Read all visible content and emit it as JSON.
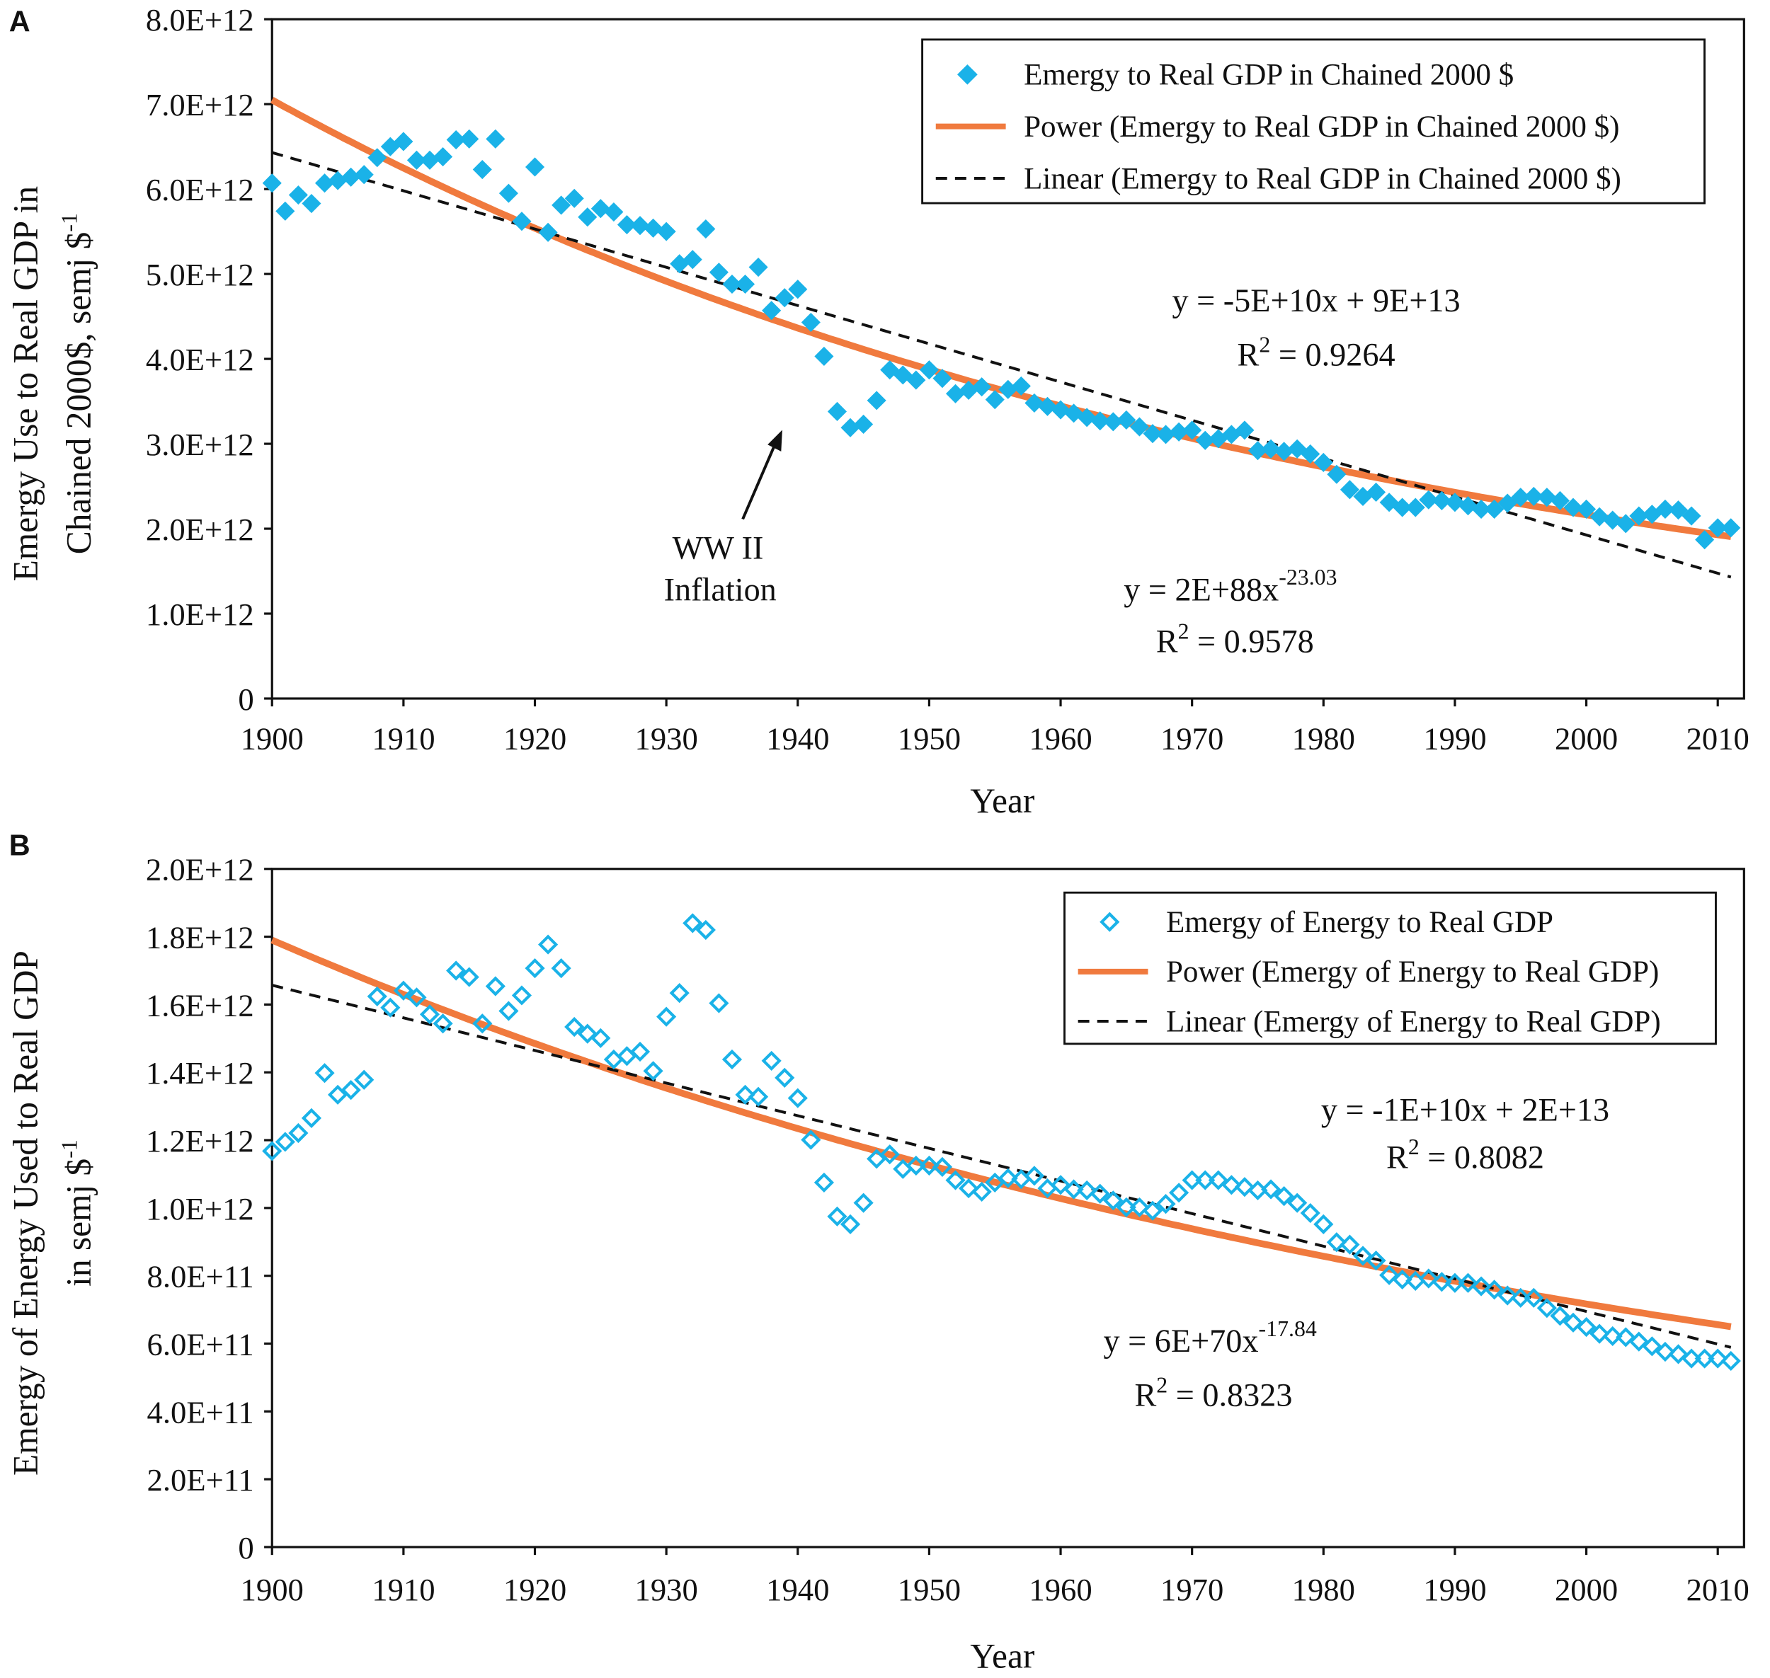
{
  "chart_data": [
    {
      "panel": "A",
      "type": "scatter",
      "xlabel": "Year",
      "ylabel": [
        "Emergy Use to Real GDP in",
        "Chained 2000$, semj $",
        "-1"
      ],
      "xlim": [
        1900,
        2012
      ],
      "ylim": [
        0,
        8000000000000.0
      ],
      "x_ticks": [
        1900,
        1910,
        1920,
        1930,
        1940,
        1950,
        1960,
        1970,
        1980,
        1990,
        2000,
        2010
      ],
      "y_ticks": [
        0,
        1000000000000.0,
        2000000000000.0,
        3000000000000.0,
        4000000000000.0,
        5000000000000.0,
        6000000000000.0,
        7000000000000.0,
        8000000000000.0
      ],
      "y_tick_labels": [
        "0",
        "1.0E+12",
        "2.0E+12",
        "3.0E+12",
        "4.0E+12",
        "5.0E+12",
        "6.0E+12",
        "7.0E+12",
        "8.0E+12"
      ],
      "legend_position": "top-right",
      "series": [
        {
          "name": "Emergy to Real GDP in Chained 2000 $",
          "marker": "filled-diamond",
          "color": "#1ab2e8",
          "x_start": 1900,
          "values": [
            6.07,
            5.74,
            5.93,
            5.83,
            6.07,
            6.1,
            6.14,
            6.17,
            6.37,
            6.5,
            6.56,
            6.34,
            6.34,
            6.38,
            6.58,
            6.59,
            6.23,
            6.59,
            5.95,
            5.62,
            6.26,
            5.49,
            5.81,
            5.89,
            5.67,
            5.77,
            5.73,
            5.58,
            5.57,
            5.54,
            5.5,
            5.12,
            5.17,
            5.53,
            5.02,
            4.88,
            4.88,
            5.08,
            4.57,
            4.72,
            4.82,
            4.43,
            4.03,
            3.38,
            3.19,
            3.23,
            3.51,
            3.87,
            3.81,
            3.75,
            3.87,
            3.77,
            3.59,
            3.63,
            3.67,
            3.52,
            3.64,
            3.68,
            3.48,
            3.44,
            3.4,
            3.36,
            3.31,
            3.27,
            3.26,
            3.28,
            3.2,
            3.12,
            3.11,
            3.14,
            3.16,
            3.04,
            3.06,
            3.11,
            3.16,
            2.92,
            2.94,
            2.91,
            2.94,
            2.88,
            2.78,
            2.64,
            2.46,
            2.38,
            2.43,
            2.31,
            2.25,
            2.25,
            2.34,
            2.33,
            2.31,
            2.27,
            2.23,
            2.23,
            2.3,
            2.37,
            2.38,
            2.37,
            2.33,
            2.25,
            2.23,
            2.14,
            2.1,
            2.06,
            2.15,
            2.17,
            2.23,
            2.22,
            2.15,
            1.87,
            2.01,
            2.01
          ],
          "value_scale": 1000000000000.0
        },
        {
          "name": "Power (Emergy to Real GDP in Chained 2000 $)",
          "type": "power-trend",
          "color": "#f07a3e",
          "exponent": -23.03,
          "y_at_1900": 7050000000000.0,
          "x_range": [
            1900,
            2011
          ]
        },
        {
          "name": "Linear (Emergy to Real GDP in Chained 2000 $)",
          "type": "linear-trend",
          "color": "#111111",
          "y_at_1900": 6430000000000.0,
          "y_at_2011": 1430000000000.0
        }
      ],
      "annotations": {
        "linear_eq": "y = -5E+10x + 9E+13",
        "linear_r2_prefix": "R",
        "linear_r2_sup": "2",
        "linear_r2_value": " = 0.9264",
        "power_eq": "y = 2E+88x",
        "power_eq_sup": "-23.03",
        "power_r2_prefix": "R",
        "power_r2_sup": "2",
        "power_r2_value": " = 0.9578",
        "callout_line1": "WW II",
        "callout_line2": "Inflation"
      }
    },
    {
      "panel": "B",
      "type": "scatter",
      "xlabel": "Year",
      "ylabel": [
        "Emergy of Energy Used to Real GDP",
        "in semj $",
        "-1"
      ],
      "xlim": [
        1900,
        2012
      ],
      "ylim": [
        0,
        2000000000000.0
      ],
      "x_ticks": [
        1900,
        1910,
        1920,
        1930,
        1940,
        1950,
        1960,
        1970,
        1980,
        1990,
        2000,
        2010
      ],
      "y_ticks": [
        0,
        200000000000.0,
        400000000000.0,
        600000000000.0,
        800000000000.0,
        1000000000000.0,
        1200000000000.0,
        1400000000000.0,
        1600000000000.0,
        1800000000000.0,
        2000000000000.0
      ],
      "y_tick_labels": [
        "0",
        "2.0E+11",
        "4.0E+11",
        "6.0E+11",
        "8.0E+11",
        "1.0E+12",
        "1.2E+12",
        "1.4E+12",
        "1.6E+12",
        "1.8E+12",
        "2.0E+12"
      ],
      "legend_position": "top-right",
      "series": [
        {
          "name": "Emergy of Energy to Real GDP",
          "marker": "hollow-diamond",
          "color": "#1ab2e8",
          "x_start": 1900,
          "values": [
            1.168,
            1.195,
            1.221,
            1.265,
            1.398,
            1.334,
            1.348,
            1.378,
            1.624,
            1.591,
            1.641,
            1.621,
            1.571,
            1.544,
            1.7,
            1.681,
            1.544,
            1.654,
            1.581,
            1.627,
            1.707,
            1.777,
            1.707,
            1.534,
            1.514,
            1.501,
            1.438,
            1.448,
            1.461,
            1.404,
            1.564,
            1.634,
            1.84,
            1.82,
            1.604,
            1.438,
            1.334,
            1.328,
            1.434,
            1.384,
            1.324,
            1.201,
            1.075,
            0.975,
            0.952,
            1.015,
            1.145,
            1.158,
            1.115,
            1.125,
            1.125,
            1.121,
            1.082,
            1.058,
            1.048,
            1.075,
            1.088,
            1.085,
            1.095,
            1.058,
            1.068,
            1.055,
            1.052,
            1.042,
            1.022,
            1.002,
            1.002,
            0.992,
            1.012,
            1.045,
            1.082,
            1.082,
            1.082,
            1.068,
            1.062,
            1.052,
            1.055,
            1.035,
            1.015,
            0.985,
            0.952,
            0.899,
            0.892,
            0.859,
            0.845,
            0.802,
            0.789,
            0.785,
            0.792,
            0.782,
            0.779,
            0.779,
            0.769,
            0.759,
            0.742,
            0.735,
            0.735,
            0.705,
            0.682,
            0.662,
            0.649,
            0.629,
            0.622,
            0.619,
            0.606,
            0.592,
            0.576,
            0.569,
            0.556,
            0.556,
            0.556,
            0.549
          ],
          "value_scale": 1000000000000.0
        },
        {
          "name": "Power (Emergy of Energy to Real GDP)",
          "type": "power-trend",
          "color": "#f07a3e",
          "exponent": -17.84,
          "y_at_1900": 1790000000000.0,
          "x_range": [
            1900,
            2011
          ]
        },
        {
          "name": "Linear (Emergy of Energy to Real GDP)",
          "type": "linear-trend",
          "color": "#111111",
          "y_at_1900": 1657000000000.0,
          "y_at_2011": 589000000000.0
        }
      ],
      "annotations": {
        "linear_eq": "y = -1E+10x + 2E+13",
        "linear_r2_prefix": "R",
        "linear_r2_sup": "2",
        "linear_r2_value": " = 0.8082",
        "power_eq": "y = 6E+70x",
        "power_eq_sup": "-17.84",
        "power_r2_prefix": "R",
        "power_r2_sup": "2",
        "power_r2_value": " = 0.8323"
      }
    }
  ]
}
